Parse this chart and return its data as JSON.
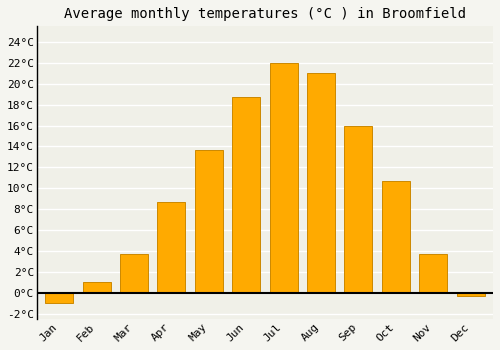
{
  "months": [
    "Jan",
    "Feb",
    "Mar",
    "Apr",
    "May",
    "Jun",
    "Jul",
    "Aug",
    "Sep",
    "Oct",
    "Nov",
    "Dec"
  ],
  "temperatures": [
    -1.0,
    1.0,
    3.7,
    8.7,
    13.7,
    18.7,
    22.0,
    21.0,
    16.0,
    10.7,
    3.7,
    -0.3
  ],
  "bar_color": "#FFAA00",
  "bar_edge_color": "#CC8800",
  "bar_edge_width": 0.7,
  "title": "Average monthly temperatures (°C ) in Broomfield",
  "title_fontsize": 10,
  "title_font": "monospace",
  "tick_font": "monospace",
  "tick_fontsize": 8,
  "ylim": [
    -2.5,
    25.5
  ],
  "yticks": [
    -2,
    0,
    2,
    4,
    6,
    8,
    10,
    12,
    14,
    16,
    18,
    20,
    22,
    24
  ],
  "ylabel_suffix": "°C",
  "background_color": "#f5f5f0",
  "plot_bg_color": "#f0f0e8",
  "grid_color": "#ffffff",
  "zero_line_color": "#000000",
  "left_spine_color": "#000000",
  "fig_width": 5.0,
  "fig_height": 3.5,
  "dpi": 100
}
